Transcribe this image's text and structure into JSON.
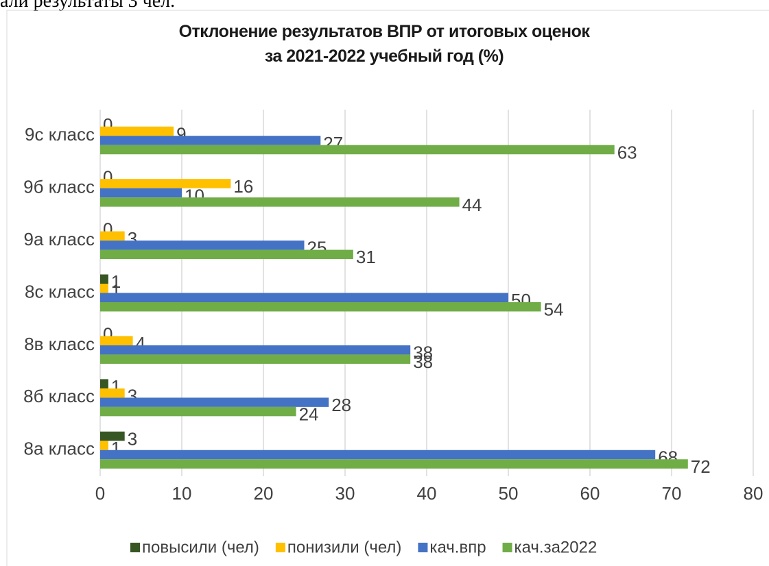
{
  "page_text": "али результаты 3 чел.",
  "chart_data": {
    "type": "hbar",
    "title": "Отклонение результатов ВПР от итоговых оценок\nза 2021-2022 учебный год (%)",
    "categories": [
      "8а класс",
      "8б класс",
      "8в класс",
      "8с класс",
      "9а класс",
      "9б класс",
      "9с класс"
    ],
    "series": [
      {
        "name": "повысили (чел)",
        "color": "#375623",
        "values": [
          3,
          1,
          0,
          1,
          0,
          0,
          0
        ]
      },
      {
        "name": "понизили (чел)",
        "color": "#ffc000",
        "values": [
          1,
          3,
          4,
          1,
          3,
          16,
          9
        ]
      },
      {
        "name": "кач.впр",
        "color": "#4472c4",
        "values": [
          68,
          28,
          38,
          50,
          25,
          10,
          27
        ]
      },
      {
        "name": "кач.за2022",
        "color": "#70ad47",
        "values": [
          72,
          24,
          38,
          54,
          31,
          44,
          63
        ]
      }
    ],
    "xlim": [
      0,
      80
    ],
    "xticks": [
      0,
      10,
      20,
      30,
      40,
      50,
      60,
      70,
      80
    ],
    "grid": true,
    "legend": "bottom"
  }
}
